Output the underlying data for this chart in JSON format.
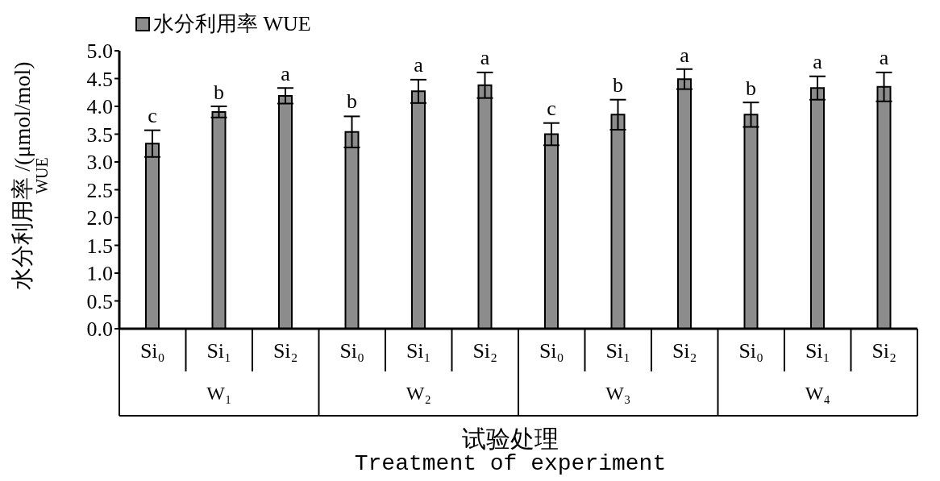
{
  "chart_data": {
    "type": "bar",
    "xlabel": "试验处理\nTreatment of experiment",
    "ylabel": "水分利用率 /(μmol/mol)\nWUE",
    "categories": [
      "Si₀",
      "Si₁",
      "Si₂",
      "Si₀",
      "Si₁",
      "Si₂",
      "Si₀",
      "Si₁",
      "Si₂",
      "Si₀",
      "Si₁",
      "Si₂"
    ],
    "series": [
      {
        "name": "水分利用率 WUE",
        "color": "#8c8c8c",
        "values": [
          3.33,
          3.9,
          4.19,
          3.54,
          4.27,
          4.38,
          3.5,
          3.85,
          4.49,
          3.85,
          4.33,
          4.35
        ],
        "errors": [
          0.24,
          0.1,
          0.14,
          0.28,
          0.21,
          0.23,
          0.2,
          0.27,
          0.18,
          0.22,
          0.21,
          0.26
        ],
        "value_labels": [
          "c",
          "b",
          "a",
          "b",
          "a",
          "a",
          "c",
          "b",
          "a",
          "b",
          "a",
          "a"
        ]
      }
    ],
    "ylim": [
      0,
      5
    ],
    "yticks": [
      {
        "value": 0,
        "label": "0.0"
      },
      {
        "value": 0.5,
        "label": "0.5"
      },
      {
        "value": 1,
        "label": "1.0"
      },
      {
        "value": 1.5,
        "label": "1.5"
      },
      {
        "value": 2,
        "label": "2.0"
      },
      {
        "value": 2.5,
        "label": "2.5"
      },
      {
        "value": 3,
        "label": "3.0"
      },
      {
        "value": 3.5,
        "label": "3.5"
      },
      {
        "value": 4,
        "label": "4.0"
      },
      {
        "value": 4.5,
        "label": "4.5"
      },
      {
        "value": 5,
        "label": "5.0"
      }
    ],
    "legend": "top left",
    "annotations": [
      "W₁",
      "W₂",
      "W₃",
      "W₄"
    ]
  }
}
